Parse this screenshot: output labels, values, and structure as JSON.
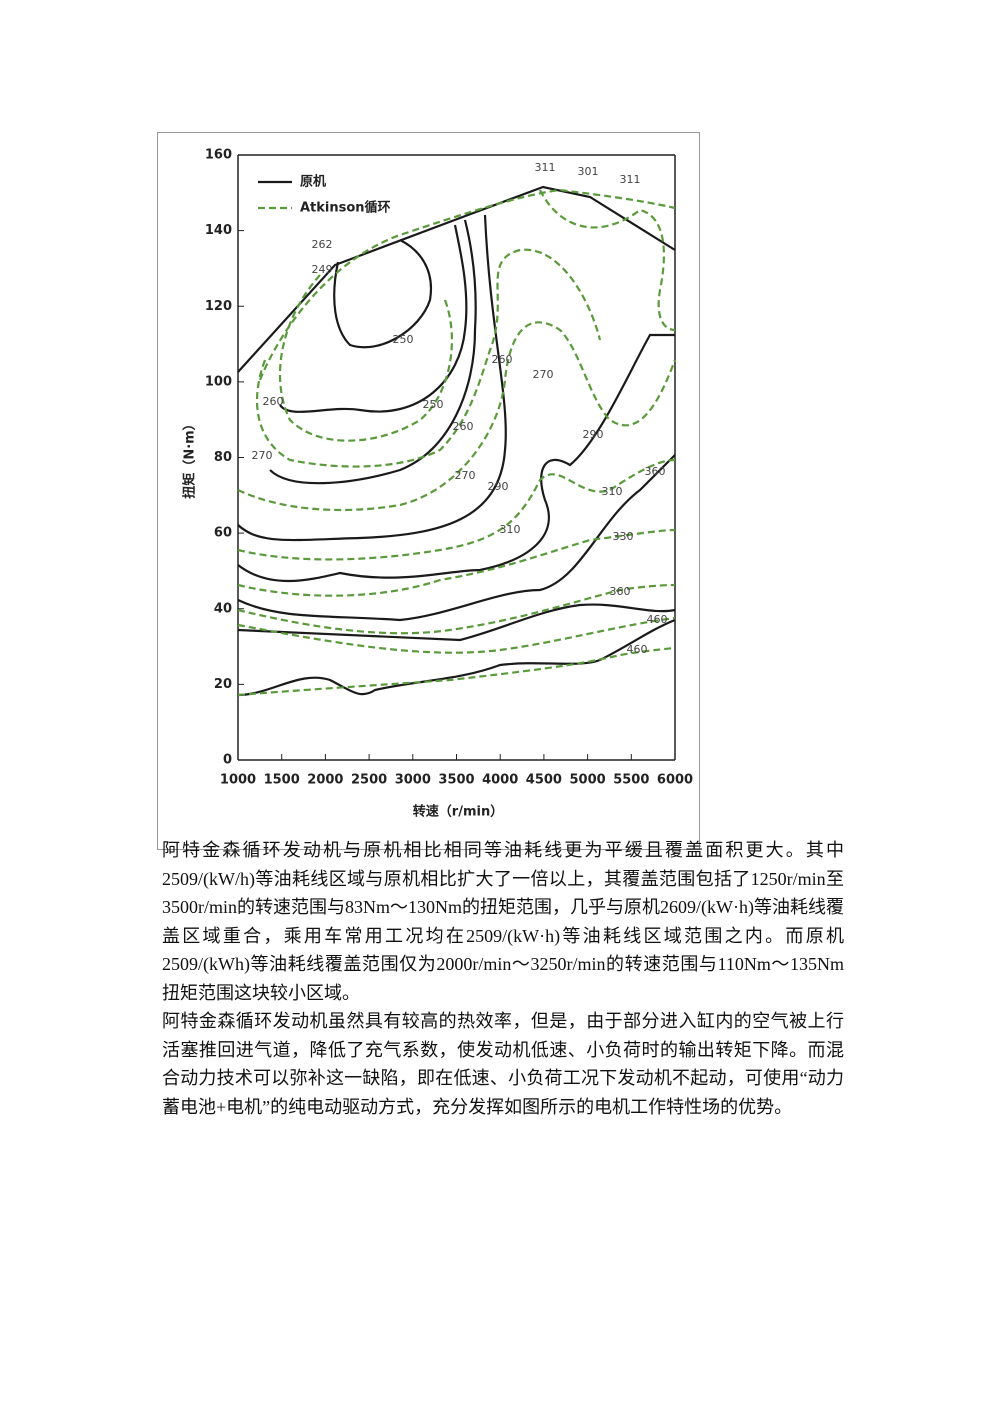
{
  "chart_data": {
    "type": "contour",
    "xlabel": "转速（r/min）",
    "ylabel": "扭矩（N·m）",
    "xlim": [
      1000,
      6000
    ],
    "xticks": [
      1000,
      1500,
      2000,
      2500,
      3000,
      3500,
      4000,
      4500,
      5000,
      5500,
      6000
    ],
    "ylim": [
      0,
      160
    ],
    "yticks": [
      0,
      20,
      40,
      60,
      80,
      100,
      120,
      140,
      160
    ],
    "legend": [
      {
        "name": "原机",
        "color": "#1a1a1a",
        "dashed": false
      },
      {
        "name": "Atkinson循环",
        "color": "#5a9a3a",
        "dashed": true
      }
    ],
    "annotations": [
      "311",
      "301",
      "311",
      "262",
      "249",
      "250",
      "250",
      "260",
      "260",
      "270",
      "270",
      "260",
      "270",
      "290",
      "290",
      "310",
      "310",
      "330",
      "360",
      "360",
      "460",
      "460"
    ]
  },
  "paragraphs": [
    "阿特金森循环发动机与原机相比相同等油耗线更为平缓且覆盖面积更大。其中2509/(kW/h)等油耗线区域与原机相比扩大了一倍以上，其覆盖范围包括了1250r/min至3500r/min的转速范围与83Nm～130Nm的扭矩范围，几乎与原机2609/(kW·h)等油耗线覆盖区域重合，乘用车常用工况均在2509/(kW·h)等油耗线区域范围之内。而原机2509/(kWh)等油耗线覆盖范围仅为2000r/min～3250r/min的转速范围与110Nm～135Nm扭矩范围这块较小区域。",
    "阿特金森循环发动机虽然具有较高的热效率，但是，由于部分进入缸内的空气被上行活塞推回进气道，降低了充气系数，使发动机低速、小负荷时的输出转矩下降。而混合动力技术可以弥补这一缺陷，即在低速、小负荷工况下发动机不起动，可使用“动力蓄电池+电机”的纯电动驱动方式，充分发挥如图所示的电机工作特性场的优势。"
  ]
}
